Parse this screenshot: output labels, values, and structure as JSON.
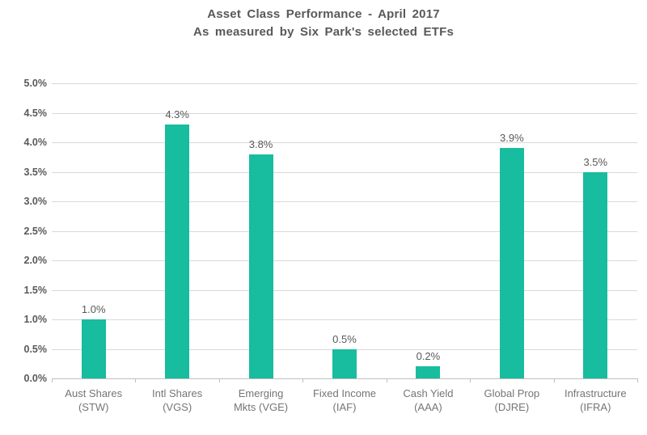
{
  "title": {
    "line1": "Asset Class Performance - April 2017",
    "line2": "As measured by Six Park's selected ETFs"
  },
  "chart_data": {
    "type": "bar",
    "title": "Asset Class Performance - April 2017",
    "subtitle": "As measured by Six Park's selected ETFs",
    "categories": [
      "Aust Shares (STW)",
      "Intl Shares (VGS)",
      "Emerging Mkts (VGE)",
      "Fixed Income (IAF)",
      "Cash Yield (AAA)",
      "Global Prop (DJRE)",
      "Infrastructure (IFRA)"
    ],
    "category_lines": [
      [
        "Aust Shares",
        "(STW)"
      ],
      [
        "Intl Shares",
        "(VGS)"
      ],
      [
        "Emerging",
        "Mkts (VGE)"
      ],
      [
        "Fixed Income",
        "(IAF)"
      ],
      [
        "Cash Yield",
        "(AAA)"
      ],
      [
        "Global Prop",
        "(DJRE)"
      ],
      [
        "Infrastructure",
        "(IFRA)"
      ]
    ],
    "values": [
      1.0,
      4.3,
      3.8,
      0.5,
      0.2,
      3.9,
      3.5
    ],
    "value_labels": [
      "1.0%",
      "4.3%",
      "3.8%",
      "0.5%",
      "0.2%",
      "3.9%",
      "3.5%"
    ],
    "ylabel": "",
    "xlabel": "",
    "ylim": [
      0,
      5
    ],
    "ytick_step": 0.5,
    "ytick_labels": [
      "0.0%",
      "0.5%",
      "1.0%",
      "1.5%",
      "2.0%",
      "2.5%",
      "3.0%",
      "3.5%",
      "4.0%",
      "4.5%",
      "5.0%"
    ],
    "grid": true,
    "legend": "none",
    "bar_color": "#18bc9e",
    "colors": {
      "grid": "#d9d9d9",
      "axis": "#bfbfbf",
      "title": "#595959",
      "ytick_label": "#595959",
      "category_label": "#757575",
      "value_label": "#595959"
    }
  }
}
